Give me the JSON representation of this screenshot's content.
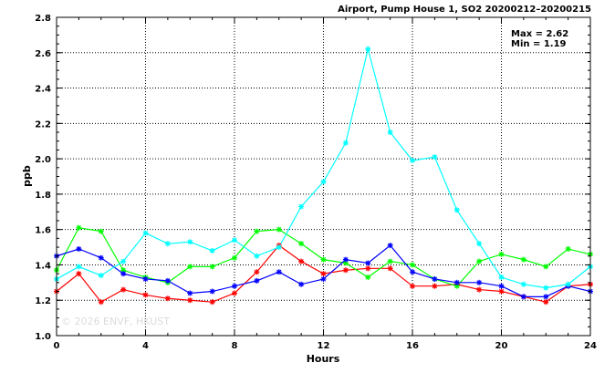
{
  "chart_data": {
    "type": "line",
    "title": "Airport, Pump House 1, SO2 20200212–20200215",
    "stats": {
      "max": "Max = 2.62",
      "min": "Min = 1.19"
    },
    "xlabel": "Hours",
    "ylabel": "ppb",
    "xlim": [
      0,
      24
    ],
    "ylim": [
      1.0,
      2.8
    ],
    "x_ticks": [
      0,
      4,
      8,
      12,
      16,
      20,
      24
    ],
    "y_ticks": [
      "1.0",
      "1.2",
      "1.4",
      "1.6",
      "1.8",
      "2.0",
      "2.2",
      "2.4",
      "2.6",
      "2.8"
    ],
    "grid": true,
    "watermark": "© 2026  ENVF, HKUST",
    "x": [
      0,
      1,
      2,
      3,
      4,
      5,
      6,
      7,
      8,
      9,
      10,
      11,
      12,
      13,
      14,
      15,
      16,
      17,
      18,
      19,
      20,
      21,
      22,
      23,
      24
    ],
    "series": [
      {
        "color": "#ff0000",
        "values": [
          1.25,
          1.35,
          1.19,
          1.26,
          1.23,
          1.21,
          1.2,
          1.19,
          1.24,
          1.36,
          1.51,
          1.42,
          1.35,
          1.37,
          1.38,
          1.38,
          1.28,
          1.28,
          1.29,
          1.26,
          1.25,
          1.22,
          1.19,
          1.28,
          1.29
        ]
      },
      {
        "color": "#00ff00",
        "values": [
          1.37,
          1.61,
          1.59,
          1.37,
          1.33,
          1.3,
          1.39,
          1.39,
          1.44,
          1.59,
          1.6,
          1.52,
          1.43,
          1.41,
          1.33,
          1.42,
          1.4,
          1.32,
          1.28,
          1.42,
          1.46,
          1.43,
          1.39,
          1.49,
          1.46
        ]
      },
      {
        "color": "#0000ff",
        "values": [
          1.45,
          1.49,
          1.44,
          1.35,
          1.32,
          1.31,
          1.24,
          1.25,
          1.28,
          1.31,
          1.36,
          1.29,
          1.32,
          1.43,
          1.41,
          1.51,
          1.36,
          1.32,
          1.3,
          1.3,
          1.28,
          1.22,
          1.22,
          1.28,
          1.25
        ]
      },
      {
        "color": "#00ffff",
        "values": [
          1.32,
          1.39,
          1.34,
          1.42,
          1.58,
          1.52,
          1.53,
          1.48,
          1.54,
          1.45,
          1.5,
          1.73,
          1.87,
          2.09,
          2.62,
          2.15,
          1.99,
          2.01,
          1.71,
          1.52,
          1.33,
          1.29,
          1.27,
          1.29,
          1.39
        ]
      }
    ]
  }
}
